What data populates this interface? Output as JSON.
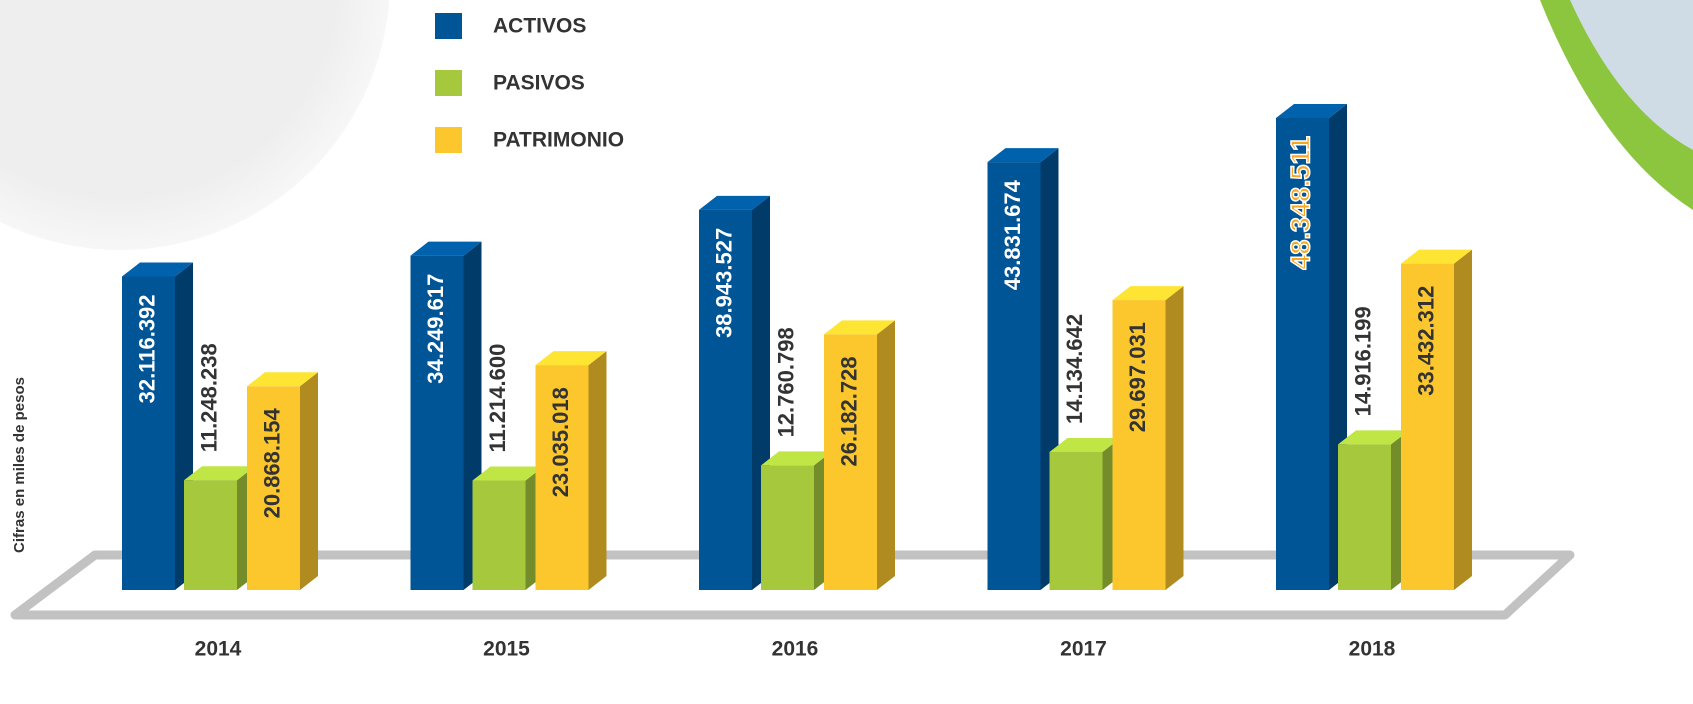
{
  "chart_data": {
    "type": "bar3d",
    "y_label": "Cifras en miles de pesos",
    "categories": [
      "2014",
      "2015",
      "2016",
      "2017",
      "2018"
    ],
    "series": [
      {
        "name": "ACTIVOS",
        "color": "#005596",
        "values": [
          32116392,
          34249617,
          38943527,
          43831674,
          48348511
        ],
        "value_labels": [
          "32.116.392",
          "34.249.617",
          "38.943.527",
          "43.831.674",
          "48.348.511"
        ]
      },
      {
        "name": "PASIVOS",
        "color": "#a6c83c",
        "values": [
          11248238,
          11214600,
          12760798,
          14134642,
          14916199
        ],
        "value_labels": [
          "11.248.238",
          "11.214.600",
          "12.760.798",
          "14.134.642",
          "14.916.199"
        ]
      },
      {
        "name": "PATRIMONIO",
        "color": "#fcc72c",
        "values": [
          20868154,
          23035018,
          26182728,
          29697031,
          33432312
        ],
        "value_labels": [
          "20.868.154",
          "23.035.018",
          "26.182.728",
          "29.697.031",
          "33.432.312"
        ]
      }
    ],
    "legend": "top-left"
  }
}
